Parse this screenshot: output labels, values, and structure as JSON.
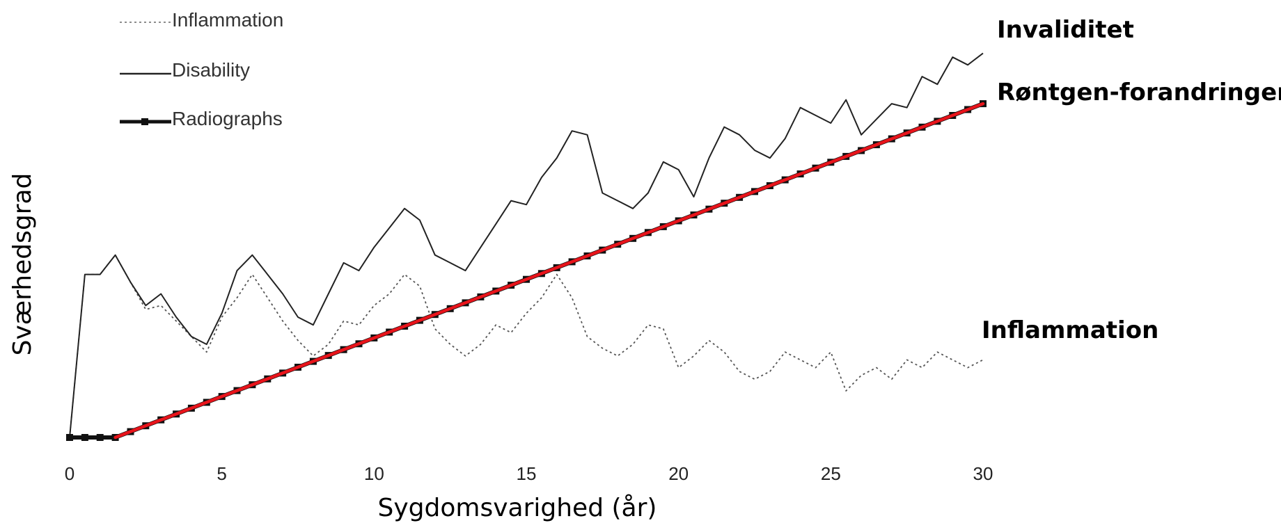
{
  "chart_data": {
    "type": "line",
    "title": "",
    "xlabel": "Sygdomsvarighed (år)",
    "ylabel": "Sværhedsgrad",
    "xlim": [
      0,
      30
    ],
    "ylim": [
      0,
      100
    ],
    "x_ticks": [
      "0",
      "5",
      "10",
      "15",
      "20",
      "25",
      "30"
    ],
    "grid": false,
    "legend": {
      "placement": "top-left",
      "entries": [
        {
          "label": "Inflammation",
          "style": "dotted"
        },
        {
          "label": "Disability",
          "style": "solid"
        },
        {
          "label": "Radiographs",
          "style": "solid-square-markers"
        }
      ]
    },
    "annotations": [
      {
        "text": "Invaliditet",
        "series": "Disability"
      },
      {
        "text": "Røntgen-forandringer",
        "series": "Radiographs"
      },
      {
        "text": "Inflammation",
        "series": "Inflammation"
      }
    ],
    "series": [
      {
        "name": "Disability",
        "style": "solid",
        "color": "#222222",
        "x": [
          0,
          0.5,
          1,
          1.5,
          2,
          2.5,
          3,
          3.5,
          4,
          4.5,
          5,
          5.5,
          6,
          6.5,
          7,
          7.5,
          8,
          8.5,
          9,
          9.5,
          10,
          10.5,
          11,
          11.5,
          12,
          12.5,
          13,
          13.5,
          14,
          14.5,
          15,
          15.5,
          16,
          16.5,
          17,
          17.5,
          18,
          18.5,
          19,
          19.5,
          20,
          20.5,
          21,
          21.5,
          22,
          22.5,
          23,
          23.5,
          24,
          24.5,
          25,
          25.5,
          26,
          26.5,
          27,
          27.5,
          28,
          28.5,
          29,
          29.5,
          30
        ],
        "values": [
          0,
          42,
          42,
          47,
          40,
          34,
          37,
          31,
          26,
          24,
          32,
          43,
          47,
          42,
          37,
          31,
          29,
          37,
          45,
          43,
          49,
          54,
          59,
          56,
          47,
          45,
          43,
          49,
          55,
          61,
          60,
          67,
          72,
          79,
          78,
          63,
          61,
          59,
          63,
          71,
          69,
          62,
          72,
          80,
          78,
          74,
          72,
          77,
          85,
          83,
          81,
          87,
          78,
          82,
          86,
          85,
          93,
          91,
          98,
          96,
          99
        ]
      },
      {
        "name": "Inflammation",
        "style": "dotted",
        "color": "#555555",
        "x": [
          0,
          0.5,
          1,
          1.5,
          2,
          2.5,
          3,
          3.5,
          4,
          4.5,
          5,
          5.5,
          6,
          6.5,
          7,
          7.5,
          8,
          8.5,
          9,
          9.5,
          10,
          10.5,
          11,
          11.5,
          12,
          12.5,
          13,
          13.5,
          14,
          14.5,
          15,
          15.5,
          16,
          16.5,
          17,
          17.5,
          18,
          18.5,
          19,
          19.5,
          20,
          20.5,
          21,
          21.5,
          22,
          22.5,
          23,
          23.5,
          24,
          24.5,
          25,
          25.5,
          26,
          26.5,
          27,
          27.5,
          28,
          28.5,
          29,
          29.5,
          30
        ],
        "values": [
          0,
          42,
          42,
          47,
          40,
          33,
          34,
          30,
          26,
          22,
          31,
          36,
          42,
          36,
          30,
          25,
          21,
          24,
          30,
          29,
          34,
          37,
          42,
          39,
          28,
          24,
          21,
          24,
          29,
          27,
          32,
          36,
          42,
          36,
          26,
          23,
          21,
          24,
          29,
          28,
          18,
          21,
          25,
          22,
          17,
          15,
          17,
          22,
          20,
          18,
          22,
          12,
          16,
          18,
          15,
          20,
          18,
          22,
          20,
          18,
          20
        ]
      },
      {
        "name": "Radiographs",
        "style": "solid-square-markers",
        "color": "#111111",
        "overlay_color": "#e8141b",
        "x": [
          0,
          0.5,
          1,
          1.5,
          30
        ],
        "values": [
          0,
          0,
          0,
          0,
          86
        ]
      }
    ]
  }
}
